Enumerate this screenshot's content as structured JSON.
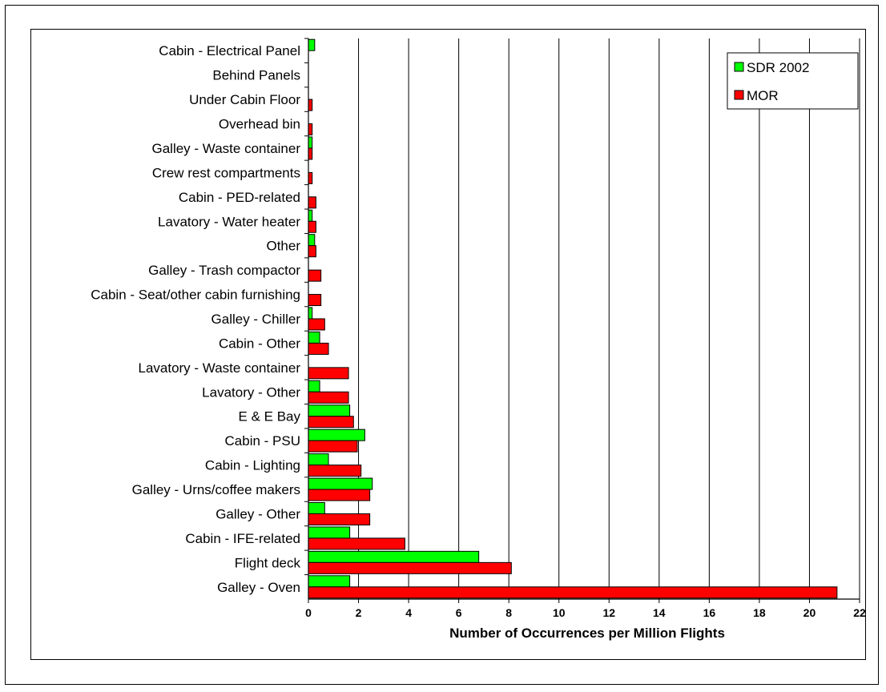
{
  "chart_data": {
    "type": "bar",
    "orientation": "horizontal",
    "title": "",
    "xlabel": "Number of Occurrences per Million Flights",
    "ylabel": "",
    "xlim": [
      0,
      22
    ],
    "xticks": [
      0,
      2,
      4,
      6,
      8,
      10,
      12,
      14,
      16,
      18,
      20,
      22
    ],
    "grid": "vertical",
    "legend_position": "top-right",
    "categories": [
      "Cabin - Electrical Panel",
      "Behind Panels",
      "Under Cabin Floor",
      "Overhead bin",
      "Galley - Waste container",
      "Crew rest compartments",
      "Cabin - PED-related",
      "Lavatory - Water heater",
      "Other",
      "Galley - Trash compactor",
      "Cabin - Seat/other cabin furnishing",
      "Galley - Chiller",
      "Cabin - Other",
      "Lavatory - Waste container",
      "Lavatory - Other",
      "E & E Bay",
      "Cabin - PSU",
      "Cabin - Lighting",
      "Galley - Urns/coffee makers",
      "Galley - Other",
      "Cabin - IFE-related",
      "Flight deck",
      "Galley - Oven"
    ],
    "series": [
      {
        "name": "SDR 2002",
        "color": "#00ff00",
        "values": [
          0.25,
          0,
          0,
          0,
          0.15,
          0,
          0,
          0.15,
          0.25,
          0,
          0,
          0.15,
          0.45,
          0,
          0.45,
          1.65,
          2.25,
          0.8,
          2.55,
          0.65,
          1.65,
          6.8,
          1.65
        ]
      },
      {
        "name": "MOR",
        "color": "#ff0000",
        "values": [
          0,
          0,
          0.15,
          0.15,
          0.15,
          0.15,
          0.3,
          0.3,
          0.3,
          0.5,
          0.5,
          0.65,
          0.8,
          1.6,
          1.6,
          1.8,
          1.95,
          2.1,
          2.45,
          2.45,
          3.85,
          8.1,
          21.1
        ]
      }
    ]
  }
}
